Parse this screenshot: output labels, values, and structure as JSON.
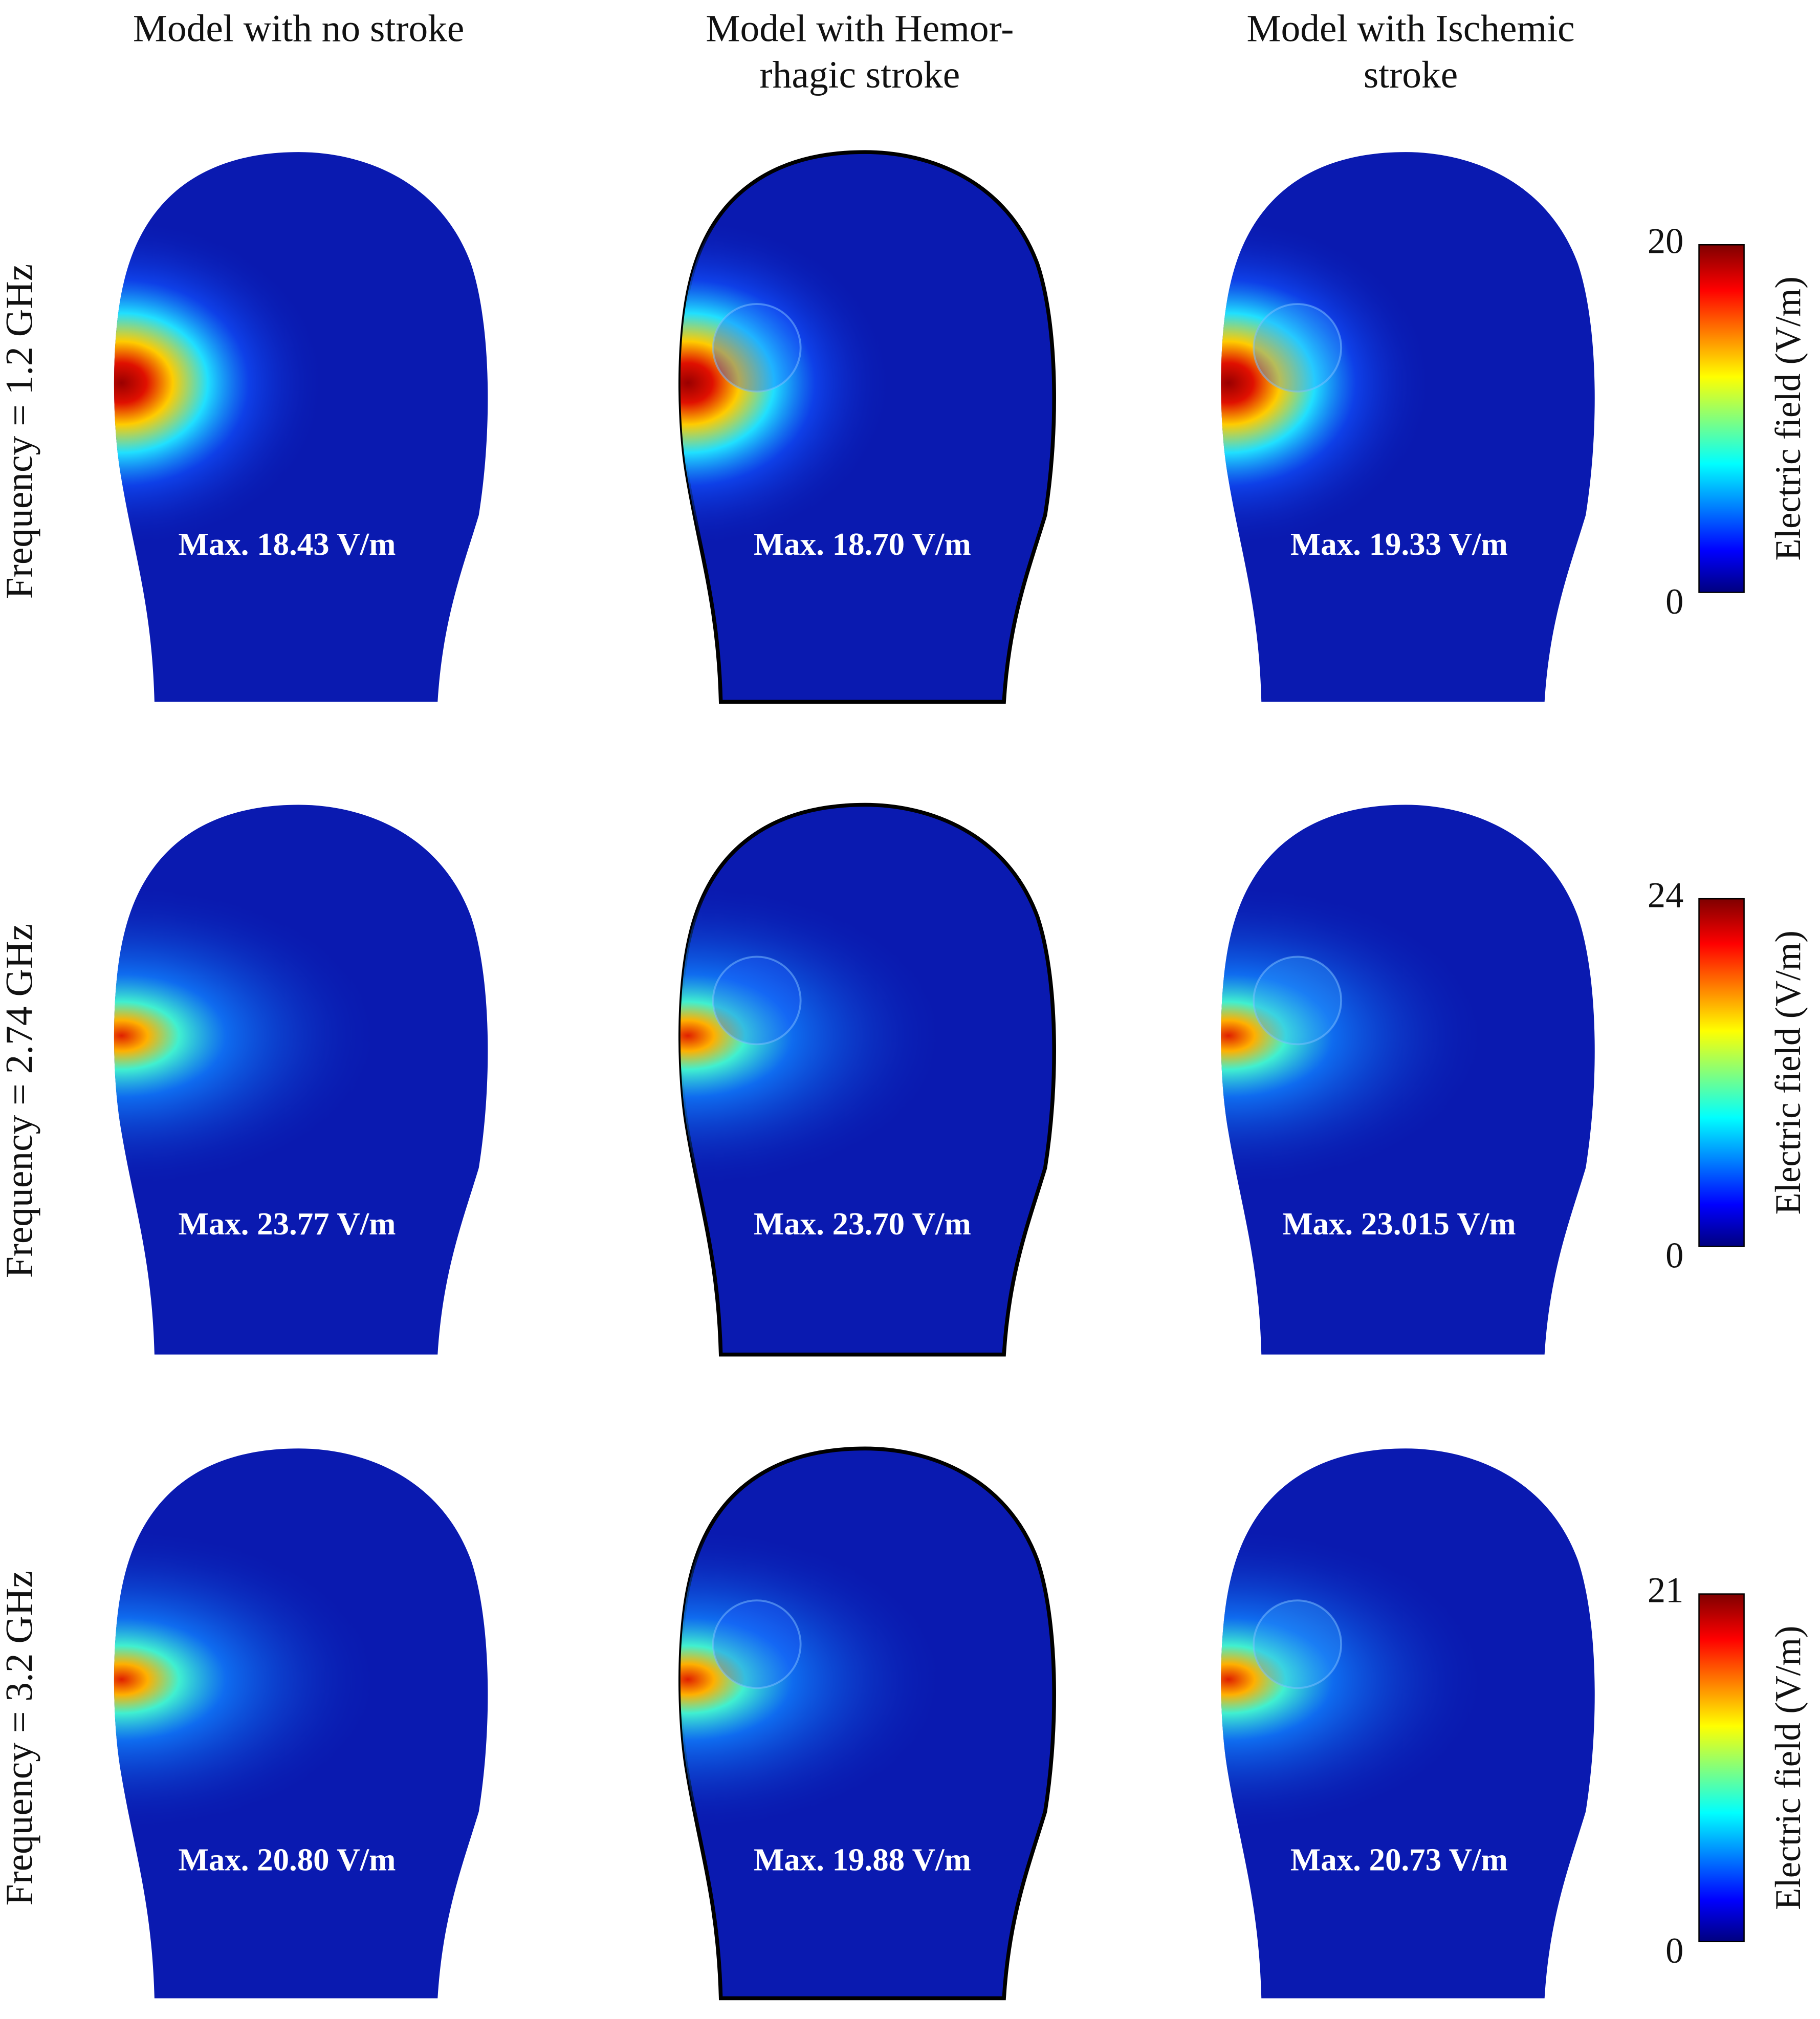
{
  "columns": [
    {
      "lines": [
        "Model with no stroke"
      ]
    },
    {
      "lines": [
        "Model with Hemor-",
        "rhagic stroke"
      ]
    },
    {
      "lines": [
        "Model with Ischemic",
        "stroke"
      ]
    }
  ],
  "rows": [
    {
      "label": "Frequency = 1.2 GHz",
      "panels": [
        "Max. 18.43 V/m",
        "Max. 18.70 V/m",
        "Max. 19.33 V/m"
      ],
      "colorbar": {
        "max": 20,
        "min": 0,
        "label": "Electric field (V/m)"
      }
    },
    {
      "label": "Frequency = 2.74 GHz",
      "panels": [
        "Max. 23.77 V/m",
        "Max. 23.70 V/m",
        "Max. 23.015 V/m"
      ],
      "colorbar": {
        "max": 24,
        "min": 0,
        "label": "Electric field (V/m)"
      }
    },
    {
      "label": "Frequency = 3.2 GHz",
      "panels": [
        "Max. 20.80 V/m",
        "Max. 19.88 V/m",
        "Max. 20.73 V/m"
      ],
      "colorbar": {
        "max": 21,
        "min": 0,
        "label": "Electric field (V/m)"
      }
    }
  ]
}
